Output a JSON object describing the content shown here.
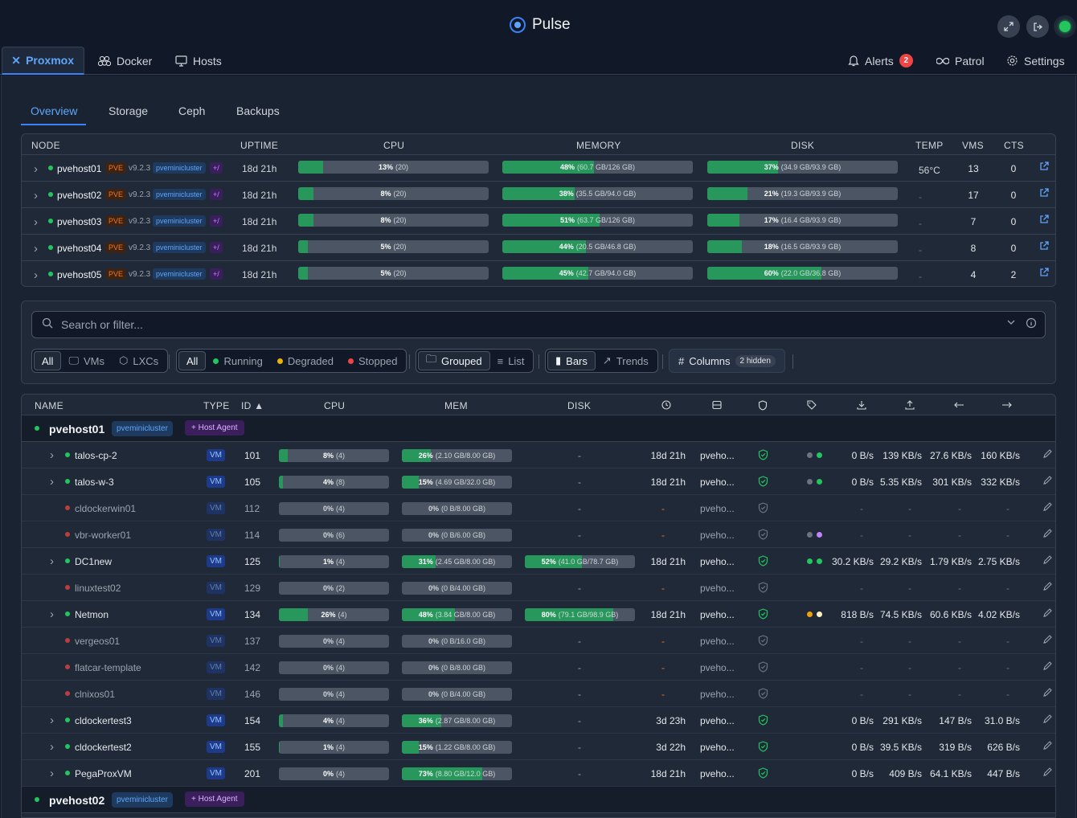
{
  "app": {
    "title": "Pulse"
  },
  "main_tabs": [
    {
      "label": "Proxmox"
    },
    {
      "label": "Docker"
    },
    {
      "label": "Hosts"
    }
  ],
  "right_tabs": {
    "alerts": "Alerts",
    "alerts_count": "2",
    "patrol": "Patrol",
    "settings": "Settings"
  },
  "sub_tabs": [
    "Overview",
    "Storage",
    "Ceph",
    "Backups"
  ],
  "node_headers": [
    "NODE",
    "UPTIME",
    "CPU",
    "MEMORY",
    "DISK",
    "TEMP",
    "VMS",
    "CTS"
  ],
  "nodes": [
    {
      "name": "pvehost01",
      "pve": "PVE",
      "version": "v9.2.3",
      "cluster": "pveminicluster",
      "agent": "+/",
      "uptime": "18d 21h",
      "cpu_pct": "13%",
      "cpu_detail": "(20)",
      "cpu_frac": 0.13,
      "mem_pct": "48%",
      "mem_detail": "(60.7 GB/126 GB)",
      "mem_frac": 0.48,
      "disk_pct": "37%",
      "disk_detail": "(34.9 GB/93.9 GB)",
      "disk_frac": 0.37,
      "temp": "56°C",
      "vms": "13",
      "cts": "0"
    },
    {
      "name": "pvehost02",
      "pve": "PVE",
      "version": "v9.2.3",
      "cluster": "pveminicluster",
      "agent": "+/",
      "uptime": "18d 21h",
      "cpu_pct": "8%",
      "cpu_detail": "(20)",
      "cpu_frac": 0.08,
      "mem_pct": "38%",
      "mem_detail": "(35.5 GB/94.0 GB)",
      "mem_frac": 0.38,
      "disk_pct": "21%",
      "disk_detail": "(19.3 GB/93.9 GB)",
      "disk_frac": 0.21,
      "temp": "-",
      "vms": "17",
      "cts": "0"
    },
    {
      "name": "pvehost03",
      "pve": "PVE",
      "version": "v9.2.3",
      "cluster": "pveminicluster",
      "agent": "+/",
      "uptime": "18d 21h",
      "cpu_pct": "8%",
      "cpu_detail": "(20)",
      "cpu_frac": 0.08,
      "mem_pct": "51%",
      "mem_detail": "(63.7 GB/126 GB)",
      "mem_frac": 0.51,
      "disk_pct": "17%",
      "disk_detail": "(16.4 GB/93.9 GB)",
      "disk_frac": 0.17,
      "temp": "-",
      "vms": "7",
      "cts": "0"
    },
    {
      "name": "pvehost04",
      "pve": "PVE",
      "version": "v9.2.3",
      "cluster": "pveminicluster",
      "agent": "+/",
      "uptime": "18d 21h",
      "cpu_pct": "5%",
      "cpu_detail": "(20)",
      "cpu_frac": 0.05,
      "mem_pct": "44%",
      "mem_detail": "(20.5 GB/46.8 GB)",
      "mem_frac": 0.44,
      "disk_pct": "18%",
      "disk_detail": "(16.5 GB/93.9 GB)",
      "disk_frac": 0.18,
      "temp": "-",
      "vms": "8",
      "cts": "0"
    },
    {
      "name": "pvehost05",
      "pve": "PVE",
      "version": "v9.2.3",
      "cluster": "pveminicluster",
      "agent": "+/",
      "uptime": "18d 21h",
      "cpu_pct": "5%",
      "cpu_detail": "(20)",
      "cpu_frac": 0.05,
      "mem_pct": "45%",
      "mem_detail": "(42.7 GB/94.0 GB)",
      "mem_frac": 0.45,
      "disk_pct": "60%",
      "disk_detail": "(22.0 GB/36.8 GB)",
      "disk_frac": 0.6,
      "temp": "-",
      "vms": "4",
      "cts": "2"
    }
  ],
  "filters": {
    "search_placeholder": "Search or filter...",
    "type": [
      "All",
      "VMs",
      "LXCs"
    ],
    "status": [
      "All",
      "Running",
      "Degraded",
      "Stopped"
    ],
    "view": [
      "Grouped",
      "List"
    ],
    "mode": [
      "Bars",
      "Trends"
    ],
    "columns_label": "Columns",
    "columns_hidden": "2 hidden"
  },
  "guest_headers": {
    "name": "NAME",
    "type": "TYPE",
    "id": "ID ▲",
    "cpu": "CPU",
    "mem": "MEM",
    "disk": "DISK"
  },
  "groups": [
    {
      "name": "pvehost01",
      "cluster": "pveminicluster",
      "agent": "+ Host Agent"
    },
    {
      "name": "pvehost02",
      "cluster": "pveminicluster",
      "agent": "+ Host Agent"
    }
  ],
  "guests": [
    {
      "name": "talos-cp-2",
      "running": true,
      "type": "VM",
      "id": "101",
      "cpu_pct": "8%",
      "cpu_detail": "(4)",
      "cpu_frac": 0.08,
      "mem_pct": "26%",
      "mem_detail": "(2.10 GB/8.00 GB)",
      "mem_frac": 0.26,
      "disk": "-",
      "uptime": "18d 21h",
      "node": "pveho...",
      "tags": [
        "#6b7280",
        "#22c55e"
      ],
      "dr": "0 B/s",
      "dw": "139 KB/s",
      "ni": "27.6 KB/s",
      "no": "160 KB/s"
    },
    {
      "name": "talos-w-3",
      "running": true,
      "type": "VM",
      "id": "105",
      "cpu_pct": "4%",
      "cpu_detail": "(8)",
      "cpu_frac": 0.04,
      "mem_pct": "15%",
      "mem_detail": "(4.69 GB/32.0 GB)",
      "mem_frac": 0.15,
      "disk": "-",
      "uptime": "18d 21h",
      "node": "pveho...",
      "tags": [
        "#6b7280",
        "#22c55e"
      ],
      "dr": "0 B/s",
      "dw": "5.35 KB/s",
      "ni": "301 KB/s",
      "no": "332 KB/s"
    },
    {
      "name": "cldockerwin01",
      "running": false,
      "type": "VM",
      "id": "112",
      "cpu_pct": "0%",
      "cpu_detail": "(4)",
      "cpu_frac": 0,
      "mem_pct": "0%",
      "mem_detail": "(0 B/8.00 GB)",
      "mem_frac": 0,
      "disk": "-",
      "uptime": "-",
      "node": "pveho...",
      "tags": [],
      "dr": "-",
      "dw": "-",
      "ni": "-",
      "no": "-"
    },
    {
      "name": "vbr-worker01",
      "running": false,
      "type": "VM",
      "id": "114",
      "cpu_pct": "0%",
      "cpu_detail": "(6)",
      "cpu_frac": 0,
      "mem_pct": "0%",
      "mem_detail": "(0 B/6.00 GB)",
      "mem_frac": 0,
      "disk": "-",
      "uptime": "-",
      "node": "pveho...",
      "tags": [
        "#6b7280",
        "#c084fc"
      ],
      "dr": "-",
      "dw": "-",
      "ni": "-",
      "no": "-"
    },
    {
      "name": "DC1new",
      "running": true,
      "type": "VM",
      "id": "125",
      "cpu_pct": "1%",
      "cpu_detail": "(4)",
      "cpu_frac": 0.01,
      "mem_pct": "31%",
      "mem_detail": "(2.45 GB/8.00 GB)",
      "mem_frac": 0.31,
      "disk": "52%",
      "disk_detail": "(41.0 GB/78.7 GB)",
      "disk_frac": 0.52,
      "uptime": "18d 21h",
      "node": "pveho...",
      "tags": [
        "#22c55e",
        "#22c55e"
      ],
      "dr": "30.2 KB/s",
      "dw": "29.2 KB/s",
      "ni": "1.79 KB/s",
      "no": "2.75 KB/s"
    },
    {
      "name": "linuxtest02",
      "running": false,
      "type": "VM",
      "id": "129",
      "cpu_pct": "0%",
      "cpu_detail": "(2)",
      "cpu_frac": 0,
      "mem_pct": "0%",
      "mem_detail": "(0 B/4.00 GB)",
      "mem_frac": 0,
      "disk": "-",
      "uptime": "-",
      "node": "pveho...",
      "tags": [],
      "dr": "-",
      "dw": "-",
      "ni": "-",
      "no": "-"
    },
    {
      "name": "Netmon",
      "running": true,
      "type": "VM",
      "id": "134",
      "cpu_pct": "26%",
      "cpu_detail": "(4)",
      "cpu_frac": 0.26,
      "mem_pct": "48%",
      "mem_detail": "(3.84 GB/8.00 GB)",
      "mem_frac": 0.48,
      "disk": "80%",
      "disk_detail": "(79.1 GB/98.9 GB)",
      "disk_frac": 0.8,
      "uptime": "18d 21h",
      "node": "pveho...",
      "tags": [
        "#f59e0b",
        "#fef3c7"
      ],
      "dr": "818 B/s",
      "dw": "74.5 KB/s",
      "ni": "60.6 KB/s",
      "no": "4.02 KB/s"
    },
    {
      "name": "vergeos01",
      "running": false,
      "type": "VM",
      "id": "137",
      "cpu_pct": "0%",
      "cpu_detail": "(4)",
      "cpu_frac": 0,
      "mem_pct": "0%",
      "mem_detail": "(0 B/16.0 GB)",
      "mem_frac": 0,
      "disk": "-",
      "uptime": "-",
      "node": "pveho...",
      "tags": [],
      "dr": "-",
      "dw": "-",
      "ni": "-",
      "no": "-"
    },
    {
      "name": "flatcar-template",
      "running": false,
      "type": "VM",
      "id": "142",
      "cpu_pct": "0%",
      "cpu_detail": "(4)",
      "cpu_frac": 0,
      "mem_pct": "0%",
      "mem_detail": "(0 B/8.00 GB)",
      "mem_frac": 0,
      "disk": "-",
      "uptime": "-",
      "node": "pveho...",
      "tags": [],
      "dr": "-",
      "dw": "-",
      "ni": "-",
      "no": "-"
    },
    {
      "name": "clnixos01",
      "running": false,
      "type": "VM",
      "id": "146",
      "cpu_pct": "0%",
      "cpu_detail": "(4)",
      "cpu_frac": 0,
      "mem_pct": "0%",
      "mem_detail": "(0 B/4.00 GB)",
      "mem_frac": 0,
      "disk": "-",
      "uptime": "-",
      "node": "pveho...",
      "tags": [],
      "dr": "-",
      "dw": "-",
      "ni": "-",
      "no": "-"
    },
    {
      "name": "cldockertest3",
      "running": true,
      "type": "VM",
      "id": "154",
      "cpu_pct": "4%",
      "cpu_detail": "(4)",
      "cpu_frac": 0.04,
      "mem_pct": "36%",
      "mem_detail": "(2.87 GB/8.00 GB)",
      "mem_frac": 0.36,
      "disk": "-",
      "uptime": "3d 23h",
      "node": "pveho...",
      "tags": [],
      "dr": "0 B/s",
      "dw": "291 KB/s",
      "ni": "147 B/s",
      "no": "31.0 B/s"
    },
    {
      "name": "cldockertest2",
      "running": true,
      "type": "VM",
      "id": "155",
      "cpu_pct": "1%",
      "cpu_detail": "(4)",
      "cpu_frac": 0.01,
      "mem_pct": "15%",
      "mem_detail": "(1.22 GB/8.00 GB)",
      "mem_frac": 0.15,
      "disk": "-",
      "uptime": "3d 22h",
      "node": "pveho...",
      "tags": [],
      "dr": "0 B/s",
      "dw": "39.5 KB/s",
      "ni": "319 B/s",
      "no": "626 B/s"
    },
    {
      "name": "PegaProxVM",
      "running": true,
      "type": "VM",
      "id": "201",
      "cpu_pct": "0%",
      "cpu_detail": "(4)",
      "cpu_frac": 0,
      "mem_pct": "73%",
      "mem_detail": "(8.80 GB/12.0 GB)",
      "mem_frac": 0.73,
      "disk": "-",
      "uptime": "18d 21h",
      "node": "pveho...",
      "tags": [],
      "dr": "0 B/s",
      "dw": "409 B/s",
      "ni": "64.1 KB/s",
      "no": "447 B/s"
    }
  ],
  "icons": {
    "search": "search-icon",
    "chevron": "chevron-down-icon",
    "info": "info-icon",
    "shield": "shield-check-icon",
    "edit": "pencil-icon"
  }
}
